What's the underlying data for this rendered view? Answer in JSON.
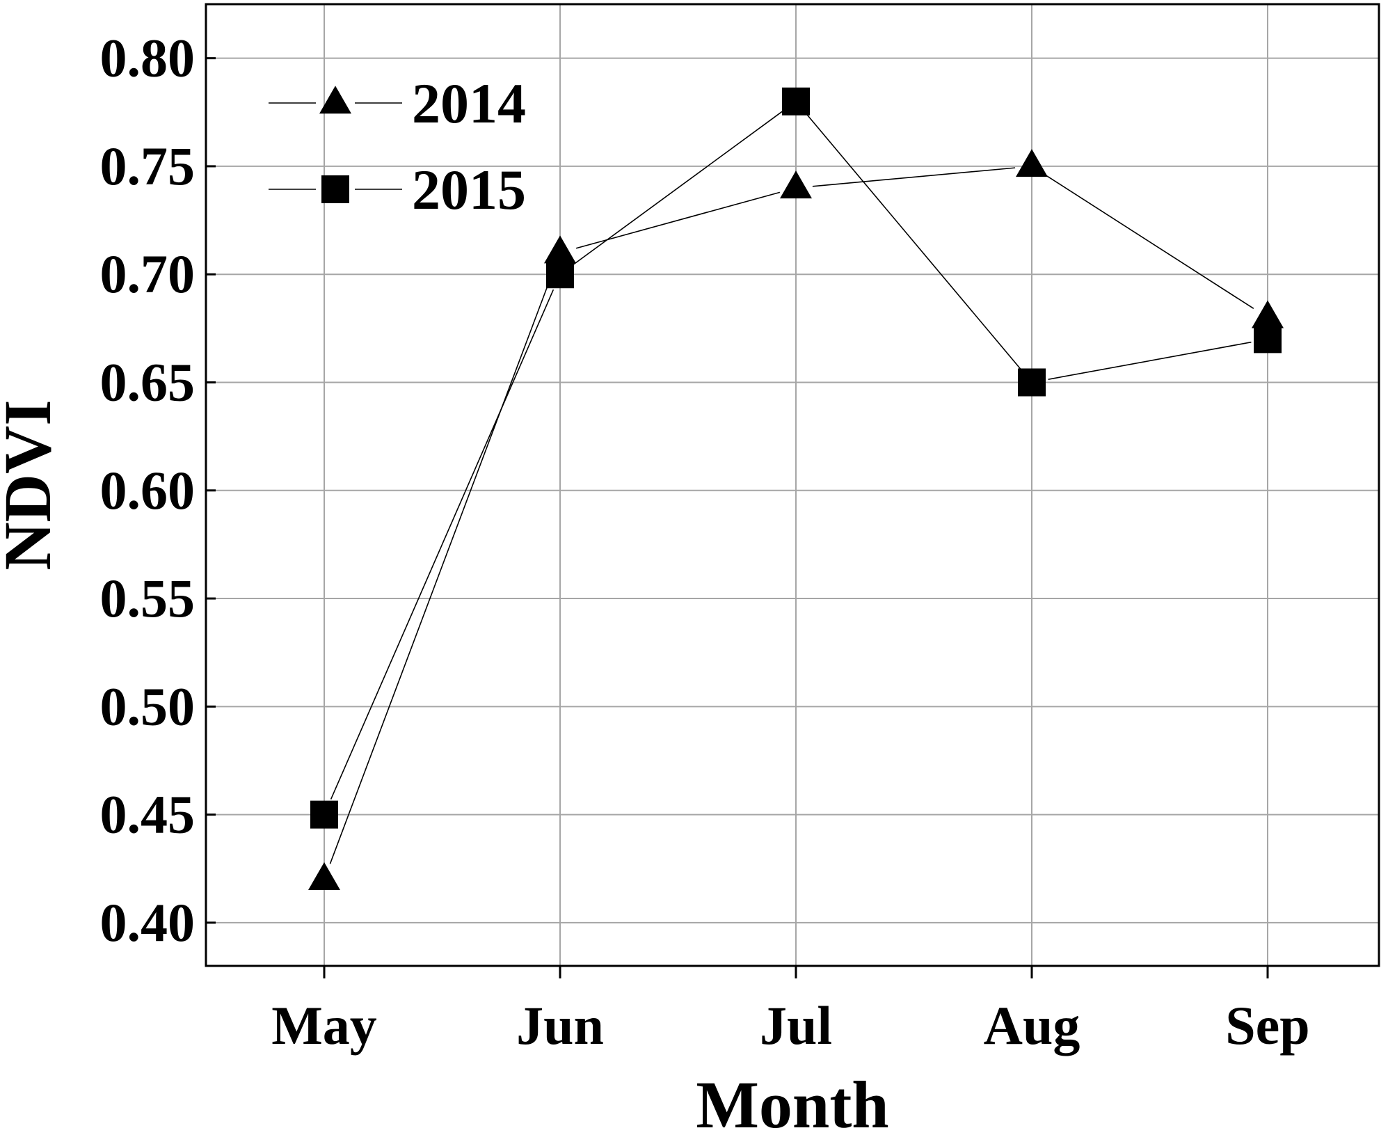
{
  "chart_data": {
    "type": "line",
    "xlabel": "Month",
    "ylabel": "NDVI",
    "categories": [
      "May",
      "Jun",
      "Jul",
      "Aug",
      "Sep"
    ],
    "ylim": [
      0.38,
      0.825
    ],
    "yticks": [
      "0.40",
      "0.45",
      "0.50",
      "0.55",
      "0.60",
      "0.65",
      "0.70",
      "0.75",
      "0.80"
    ],
    "grid": true,
    "legend_position": "top-left",
    "series": [
      {
        "name": "2014",
        "marker": "triangle",
        "color": "#000000",
        "values": [
          0.42,
          0.71,
          0.74,
          0.75,
          0.68
        ]
      },
      {
        "name": "2015",
        "marker": "square",
        "color": "#000000",
        "values": [
          0.45,
          0.7,
          0.78,
          0.65,
          0.67
        ]
      }
    ]
  }
}
